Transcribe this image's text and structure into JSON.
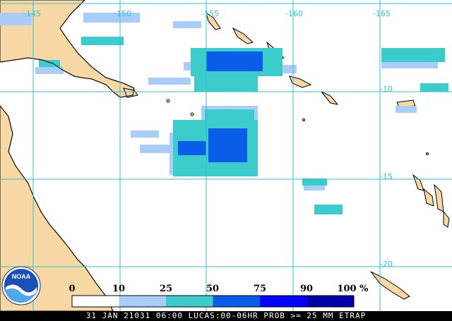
{
  "map": {
    "longitude_labels": [
      "-145",
      "-150",
      "-155",
      "-160",
      "-165"
    ],
    "latitude_labels": [
      "-10",
      "-15",
      "-20"
    ]
  },
  "legend": {
    "ticks": [
      "0",
      "10",
      "25",
      "50",
      "75",
      "90",
      "100"
    ],
    "unit": "%",
    "colors": [
      "#ffffff",
      "#a9cdf8",
      "#3ccccc",
      "#0a5de9",
      "#0000ff",
      "#0000a8"
    ]
  },
  "logo": {
    "text": "NOAA"
  },
  "footer": {
    "caption": "31 JAN 21031 06:00 LUCAS:00-06HR PROB >= 25 MM ETRAP"
  },
  "colors": {
    "land": "#f7d8a4",
    "grid": "#2bc6d6",
    "coast": "#000000"
  }
}
